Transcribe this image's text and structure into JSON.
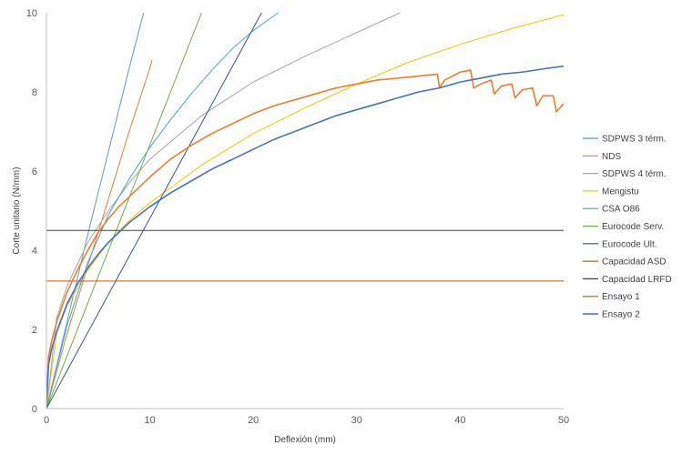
{
  "chart_data": {
    "type": "line",
    "title": "",
    "xlabel": "Deflexión (mm)",
    "ylabel": "Corte unitario (N/mm)",
    "xlim": [
      0,
      50
    ],
    "ylim": [
      0,
      10
    ],
    "x_ticks": [
      0,
      10,
      20,
      30,
      40,
      50
    ],
    "y_ticks": [
      0,
      2,
      4,
      6,
      8,
      10
    ],
    "grid": false,
    "legend_position": "right",
    "series": [
      {
        "name": "SDPWS 3 térm.",
        "color": "#5b9bd5",
        "style": "thin",
        "points": [
          [
            0,
            0
          ],
          [
            2,
            2.2
          ],
          [
            4,
            4.4
          ],
          [
            6,
            6.5
          ],
          [
            8,
            8.6
          ],
          [
            9.4,
            10
          ]
        ]
      },
      {
        "name": "NDS",
        "color": "#ed7d31",
        "style": "thin",
        "points": [
          [
            0,
            0
          ],
          [
            2,
            1.9
          ],
          [
            4,
            3.6
          ],
          [
            6,
            5.3
          ],
          [
            8,
            7.0
          ],
          [
            10,
            8.6
          ],
          [
            10.2,
            8.8
          ]
        ]
      },
      {
        "name": "SDPWS 4 térm.",
        "color": "#a5a5a5",
        "style": "thin",
        "points": [
          [
            0,
            0
          ],
          [
            1,
            2.3
          ],
          [
            2,
            3.1
          ],
          [
            4,
            4.2
          ],
          [
            6,
            5.0
          ],
          [
            8,
            5.7
          ],
          [
            10,
            6.3
          ],
          [
            15,
            7.4
          ],
          [
            20,
            8.25
          ],
          [
            25,
            8.9
          ],
          [
            30,
            9.5
          ],
          [
            34.2,
            10
          ]
        ]
      },
      {
        "name": "Mengistu",
        "color": "#ffc000",
        "style": "thin",
        "points": [
          [
            0,
            0
          ],
          [
            1,
            1.9
          ],
          [
            2,
            2.6
          ],
          [
            4,
            3.5
          ],
          [
            6,
            4.2
          ],
          [
            8,
            4.75
          ],
          [
            10,
            5.2
          ],
          [
            15,
            6.15
          ],
          [
            20,
            6.95
          ],
          [
            25,
            7.6
          ],
          [
            30,
            8.2
          ],
          [
            35,
            8.75
          ],
          [
            40,
            9.2
          ],
          [
            45,
            9.6
          ],
          [
            50,
            9.95
          ]
        ]
      },
      {
        "name": "CSA O86",
        "color": "#4aa3d4",
        "style": "thin",
        "points": [
          [
            0,
            0
          ],
          [
            2,
            2.1
          ],
          [
            4,
            3.7
          ],
          [
            6,
            4.9
          ],
          [
            8,
            5.8
          ],
          [
            10,
            6.6
          ],
          [
            12,
            7.3
          ],
          [
            14,
            7.95
          ],
          [
            16,
            8.55
          ],
          [
            18,
            9.1
          ],
          [
            20,
            9.55
          ],
          [
            22.4,
            10
          ]
        ]
      },
      {
        "name": "Eurocode Serv.",
        "color": "#70ad47",
        "style": "thin",
        "points": [
          [
            0,
            0
          ],
          [
            15,
            10
          ]
        ]
      },
      {
        "name": "Eurocode Ult.",
        "color": "#2f5597",
        "style": "thin",
        "points": [
          [
            0,
            0
          ],
          [
            20.8,
            10
          ]
        ]
      },
      {
        "name": "Capacidad ASD",
        "color": "#c55a11",
        "style": "thin",
        "points": [
          [
            0,
            3.22
          ],
          [
            50,
            3.22
          ]
        ]
      },
      {
        "name": "Capacidad LRFD",
        "color": "#404040",
        "style": "thin",
        "points": [
          [
            0,
            4.5
          ],
          [
            50,
            4.5
          ]
        ]
      },
      {
        "name": "Ensayo 1",
        "color": "#ed7d31",
        "style": "thick",
        "points": [
          [
            0,
            0
          ],
          [
            0.2,
            1.3
          ],
          [
            0.5,
            1.7
          ],
          [
            1,
            2.2
          ],
          [
            2,
            2.95
          ],
          [
            3,
            3.5
          ],
          [
            4,
            4.0
          ],
          [
            5,
            4.45
          ],
          [
            6,
            4.8
          ],
          [
            7,
            5.1
          ],
          [
            8,
            5.35
          ],
          [
            9,
            5.6
          ],
          [
            10,
            5.85
          ],
          [
            12,
            6.3
          ],
          [
            14,
            6.65
          ],
          [
            16,
            6.95
          ],
          [
            18,
            7.2
          ],
          [
            20,
            7.45
          ],
          [
            22,
            7.65
          ],
          [
            24,
            7.8
          ],
          [
            26,
            7.95
          ],
          [
            28,
            8.1
          ],
          [
            30,
            8.2
          ],
          [
            32,
            8.3
          ],
          [
            34,
            8.35
          ],
          [
            36,
            8.4
          ],
          [
            37.8,
            8.45
          ],
          [
            38,
            8.1
          ],
          [
            38.5,
            8.3
          ],
          [
            40,
            8.5
          ],
          [
            41,
            8.55
          ],
          [
            41.3,
            8.1
          ],
          [
            42,
            8.2
          ],
          [
            43,
            8.3
          ],
          [
            43.3,
            7.95
          ],
          [
            44,
            8.15
          ],
          [
            45,
            8.2
          ],
          [
            45.3,
            7.85
          ],
          [
            46,
            8.05
          ],
          [
            47,
            8.1
          ],
          [
            47.4,
            7.65
          ],
          [
            48,
            7.9
          ],
          [
            49,
            7.9
          ],
          [
            49.3,
            7.5
          ],
          [
            50,
            7.7
          ]
        ]
      },
      {
        "name": "Ensayo 2",
        "color": "#4472c4",
        "style": "thick",
        "points": [
          [
            0,
            0
          ],
          [
            0.2,
            1.1
          ],
          [
            0.5,
            1.5
          ],
          [
            1,
            1.95
          ],
          [
            2,
            2.65
          ],
          [
            3,
            3.15
          ],
          [
            4,
            3.55
          ],
          [
            5,
            3.9
          ],
          [
            6,
            4.2
          ],
          [
            7,
            4.45
          ],
          [
            8,
            4.7
          ],
          [
            9,
            4.9
          ],
          [
            10,
            5.1
          ],
          [
            12,
            5.45
          ],
          [
            14,
            5.75
          ],
          [
            16,
            6.05
          ],
          [
            18,
            6.3
          ],
          [
            20,
            6.55
          ],
          [
            22,
            6.8
          ],
          [
            24,
            7.0
          ],
          [
            26,
            7.2
          ],
          [
            28,
            7.4
          ],
          [
            30,
            7.55
          ],
          [
            32,
            7.7
          ],
          [
            34,
            7.85
          ],
          [
            36,
            8.0
          ],
          [
            38,
            8.1
          ],
          [
            40,
            8.25
          ],
          [
            42,
            8.35
          ],
          [
            44,
            8.45
          ],
          [
            46,
            8.5
          ],
          [
            48,
            8.58
          ],
          [
            50,
            8.65
          ]
        ]
      }
    ]
  }
}
